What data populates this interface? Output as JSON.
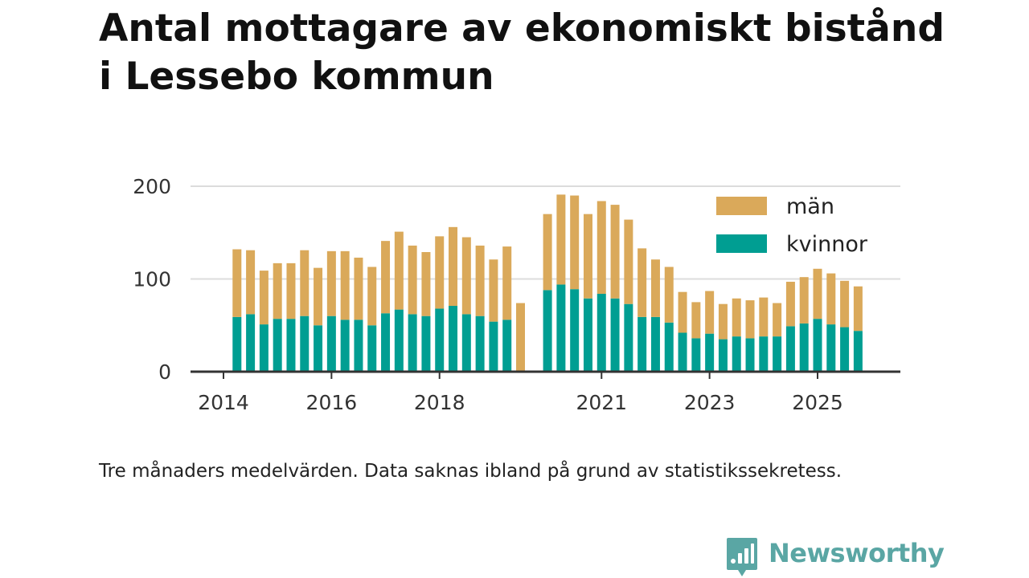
{
  "header": {
    "title_line1": "Antal mottagare av ekonomiskt bistånd",
    "title_line2": "i Lessebo kommun"
  },
  "footer": {
    "caption": "Tre månaders medelvärden. Data saknas ibland på grund av statistikssekretess.",
    "brand": "Newsworthy"
  },
  "colors": {
    "man": "#daa95a",
    "kvinnor": "#009e92",
    "grid": "#dcdcdc",
    "axis": "#333333",
    "brand": "#5aa6a4"
  },
  "chart_data": {
    "type": "bar",
    "stacked": true,
    "title": "Antal mottagare av ekonomiskt bistånd i Lessebo kommun",
    "xlabel": "",
    "ylabel": "",
    "ylim": [
      0,
      200
    ],
    "yticks": [
      0,
      100,
      200
    ],
    "grid": true,
    "legend_position": "top-right",
    "x_tick_labels": [
      {
        "label": "2014",
        "x": 2014.0
      },
      {
        "label": "2016",
        "x": 2016.0
      },
      {
        "label": "2018",
        "x": 2018.0
      },
      {
        "label": "2021",
        "x": 2021.0
      },
      {
        "label": "2023",
        "x": 2023.0
      },
      {
        "label": "2025",
        "x": 2025.0
      }
    ],
    "x": [
      2014.25,
      2014.5,
      2014.75,
      2015.0,
      2015.25,
      2015.5,
      2015.75,
      2016.0,
      2016.25,
      2016.5,
      2016.75,
      2017.0,
      2017.25,
      2017.5,
      2017.75,
      2018.0,
      2018.25,
      2018.5,
      2018.75,
      2019.0,
      2019.25,
      2019.5,
      2019.75,
      2020.0,
      2020.25,
      2020.5,
      2020.75,
      2021.0,
      2021.25,
      2021.5,
      2021.75,
      2022.0,
      2022.25,
      2022.5,
      2022.75,
      2023.0,
      2023.25,
      2023.5,
      2023.75,
      2024.0,
      2024.25,
      2024.5,
      2024.75,
      2025.0,
      2025.25,
      2025.5,
      2025.75
    ],
    "series": [
      {
        "name": "kvinnor",
        "color": "#009e92",
        "values": [
          59,
          62,
          51,
          57,
          57,
          60,
          50,
          60,
          56,
          56,
          50,
          63,
          67,
          62,
          60,
          68,
          71,
          62,
          60,
          54,
          56,
          null,
          null,
          88,
          94,
          89,
          79,
          84,
          79,
          73,
          59,
          59,
          53,
          42,
          36,
          41,
          35,
          38,
          36,
          38,
          38,
          49,
          52,
          57,
          51,
          48,
          44
        ]
      },
      {
        "name": "män",
        "color": "#daa95a",
        "values": [
          73,
          69,
          58,
          60,
          60,
          71,
          62,
          70,
          74,
          67,
          63,
          78,
          84,
          74,
          69,
          78,
          85,
          83,
          76,
          67,
          79,
          74,
          null,
          82,
          97,
          101,
          91,
          100,
          101,
          91,
          74,
          62,
          60,
          44,
          39,
          46,
          38,
          41,
          41,
          42,
          36,
          48,
          50,
          54,
          55,
          50,
          48
        ]
      }
    ]
  },
  "legend": [
    {
      "label": "män",
      "color": "#daa95a"
    },
    {
      "label": "kvinnor",
      "color": "#009e92"
    }
  ]
}
